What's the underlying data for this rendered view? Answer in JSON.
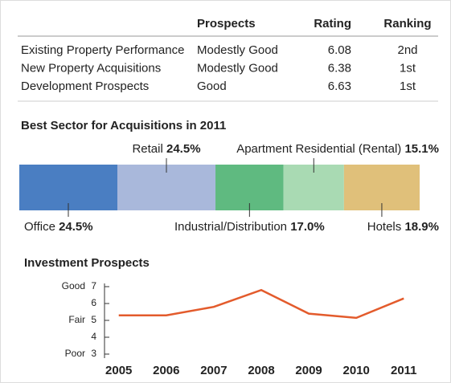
{
  "table": {
    "columns": [
      "Prospects",
      "Rating",
      "Ranking"
    ],
    "rows": [
      {
        "label": "Existing Property Performance",
        "prospects": "Modestly Good",
        "rating": "6.08",
        "ranking": "2nd"
      },
      {
        "label": "New Property Acquisitions",
        "prospects": "Modestly Good",
        "rating": "6.38",
        "ranking": "1st"
      },
      {
        "label": "Development Prospects",
        "prospects": "Good",
        "rating": "6.63",
        "ranking": "1st"
      }
    ]
  },
  "chart_data": [
    {
      "type": "stacked_bar",
      "title": "Best Sector for Acquisitions in 2011",
      "series": [
        {
          "name": "Office",
          "color": "#4a7ec2",
          "values": [
            24.5
          ],
          "value_labels": [
            "24.5%"
          ]
        },
        {
          "name": "Retail",
          "color": "#a9b8db",
          "values": [
            24.5
          ],
          "value_labels": [
            "24.5%"
          ]
        },
        {
          "name": "Industrial/Distribution",
          "color": "#5fba80",
          "values": [
            17.0
          ],
          "value_labels": [
            "17.0%"
          ]
        },
        {
          "name": "Apartment Residential (Rental)",
          "color": "#a9dab3",
          "values": [
            15.1
          ],
          "value_labels": [
            "15.1%"
          ]
        },
        {
          "name": "Hotels",
          "color": "#e0c07a",
          "values": [
            18.9
          ],
          "value_labels": [
            "18.9%"
          ]
        }
      ]
    },
    {
      "type": "line",
      "title": "Investment Prospects",
      "color": "#e35b2c",
      "x": [
        2005,
        2006,
        2007,
        2008,
        2009,
        2010,
        2011
      ],
      "values": [
        5.3,
        5.3,
        5.8,
        6.8,
        5.4,
        5.15,
        6.3
      ],
      "xlim": [
        2004.7,
        2011.3
      ],
      "xticks": [
        2005,
        2006,
        2007,
        2008,
        2009,
        2010,
        2011
      ],
      "ylim": [
        3,
        7
      ],
      "yticks": [
        3,
        4,
        5,
        6,
        7
      ],
      "ylevels": [
        {
          "value": 7,
          "label": "Good"
        },
        {
          "value": 5,
          "label": "Fair"
        },
        {
          "value": 3,
          "label": "Poor"
        }
      ]
    }
  ]
}
